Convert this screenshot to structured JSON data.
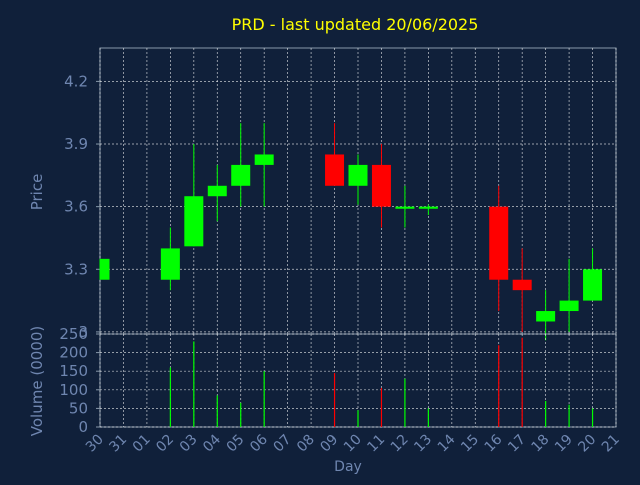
{
  "chart_data": [
    {
      "type": "candlestick",
      "title": "PRD - last updated 20/06/2025",
      "ylabel": "Price",
      "ylim": [
        2.99,
        4.36
      ],
      "yticks": [
        3,
        3.3,
        3.6,
        3.9,
        4.2
      ],
      "ytick_labels": [
        "3",
        "3.3",
        "3.6",
        "3.9",
        "4.2"
      ],
      "grid": true,
      "x_categories": [
        "30",
        "31",
        "01",
        "02",
        "03",
        "04",
        "05",
        "06",
        "07",
        "08",
        "09",
        "10",
        "11",
        "12",
        "13",
        "14",
        "15",
        "16",
        "17",
        "18",
        "19",
        "20",
        "21"
      ],
      "candles": [
        {
          "day": "30",
          "open": 3.25,
          "high": 3.35,
          "low": 3.25,
          "close": 3.35
        },
        {
          "day": "02",
          "open": 3.25,
          "high": 3.5,
          "low": 3.2,
          "close": 3.4
        },
        {
          "day": "03",
          "open": 3.41,
          "high": 3.9,
          "low": 3.41,
          "close": 3.65
        },
        {
          "day": "04",
          "open": 3.65,
          "high": 3.8,
          "low": 3.53,
          "close": 3.7
        },
        {
          "day": "05",
          "open": 3.7,
          "high": 4.0,
          "low": 3.6,
          "close": 3.8
        },
        {
          "day": "06",
          "open": 3.8,
          "high": 4.0,
          "low": 3.6,
          "close": 3.85
        },
        {
          "day": "09",
          "open": 3.85,
          "high": 4.0,
          "low": 3.7,
          "close": 3.7
        },
        {
          "day": "10",
          "open": 3.7,
          "high": 3.85,
          "low": 3.61,
          "close": 3.8
        },
        {
          "day": "11",
          "open": 3.8,
          "high": 3.9,
          "low": 3.5,
          "close": 3.6
        },
        {
          "day": "12",
          "open": 3.59,
          "high": 3.7,
          "low": 3.5,
          "close": 3.6
        },
        {
          "day": "13",
          "open": 3.59,
          "high": 3.61,
          "low": 3.56,
          "close": 3.6
        },
        {
          "day": "16",
          "open": 3.6,
          "high": 3.7,
          "low": 3.1,
          "close": 3.25
        },
        {
          "day": "17",
          "open": 3.25,
          "high": 3.4,
          "low": 3.0,
          "close": 3.2
        },
        {
          "day": "18",
          "open": 3.05,
          "high": 3.2,
          "low": 2.96,
          "close": 3.1
        },
        {
          "day": "19",
          "open": 3.1,
          "high": 3.35,
          "low": 3.0,
          "close": 3.15
        },
        {
          "day": "20",
          "open": 3.15,
          "high": 3.4,
          "low": 3.15,
          "close": 3.3
        }
      ],
      "colors": {
        "up": "#00ff00",
        "down": "#ff0000"
      }
    },
    {
      "type": "bar",
      "ylabel": "Volume (0000)",
      "xlabel": "Day",
      "ylim": [
        0,
        250
      ],
      "yticks": [
        0,
        50,
        100,
        150,
        200,
        250
      ],
      "ytick_labels": [
        "0",
        "50",
        "100",
        "150",
        "200",
        "250"
      ],
      "categories": [
        "30",
        "31",
        "01",
        "02",
        "03",
        "04",
        "05",
        "06",
        "07",
        "08",
        "09",
        "10",
        "11",
        "12",
        "13",
        "14",
        "15",
        "16",
        "17",
        "18",
        "19",
        "20",
        "21"
      ],
      "bars": [
        {
          "day": "30",
          "value": 0,
          "color": "#00ff00"
        },
        {
          "day": "02",
          "value": 160,
          "color": "#00ff00"
        },
        {
          "day": "03",
          "value": 230,
          "color": "#00ff00"
        },
        {
          "day": "04",
          "value": 85,
          "color": "#00ff00"
        },
        {
          "day": "05",
          "value": 65,
          "color": "#00ff00"
        },
        {
          "day": "06",
          "value": 150,
          "color": "#00ff00"
        },
        {
          "day": "09",
          "value": 145,
          "color": "#ff0000"
        },
        {
          "day": "10",
          "value": 45,
          "color": "#00ff00"
        },
        {
          "day": "11",
          "value": 105,
          "color": "#ff0000"
        },
        {
          "day": "12",
          "value": 130,
          "color": "#00ff00"
        },
        {
          "day": "13",
          "value": 50,
          "color": "#00ff00"
        },
        {
          "day": "16",
          "value": 220,
          "color": "#ff0000"
        },
        {
          "day": "17",
          "value": 240,
          "color": "#ff0000"
        },
        {
          "day": "18",
          "value": 70,
          "color": "#00ff00"
        },
        {
          "day": "19",
          "value": 60,
          "color": "#00ff00"
        },
        {
          "day": "20",
          "value": 50,
          "color": "#00ff00"
        }
      ]
    }
  ],
  "colors": {
    "background": "#10203a",
    "axis_text": "#6f86b0",
    "title": "#ffff00",
    "grid": "#ffffff",
    "frame": "#8899aa"
  }
}
